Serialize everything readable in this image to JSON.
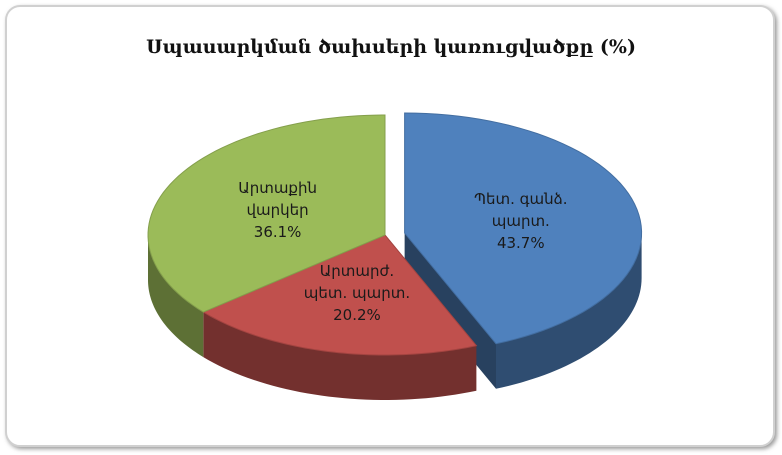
{
  "chart_data": {
    "type": "pie",
    "title": "Սպասարկման ծախսերի կառուցվածքը (%)",
    "categories": [
      "Պետ. գանձ. պարտ.",
      "Արտարժ. պետ. պարտ.",
      "Արտաքին վարկեր"
    ],
    "values": [
      43.7,
      20.2,
      36.1
    ],
    "value_labels": [
      "43.7%",
      "20.2%",
      "36.1%"
    ],
    "colors": [
      "#4f81bd",
      "#c0504d",
      "#9bbb59"
    ]
  }
}
